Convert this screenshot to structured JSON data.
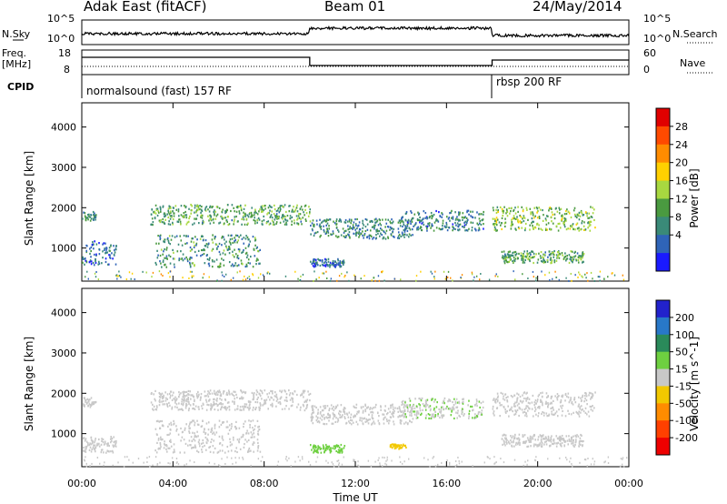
{
  "header": {
    "radar": "Adak East (fitACF)",
    "beam": "Beam 01",
    "date": "24/May/2014"
  },
  "sky_panel": {
    "left_label": "N.Sky",
    "right_label": "N.Search",
    "left_ticks": [
      "10^5",
      "10^0"
    ],
    "right_ticks": [
      "10^5",
      "10^0"
    ]
  },
  "freq_panel": {
    "left_label_line1": "Freq.",
    "left_label_line2": "[MHz]",
    "left_ticks": [
      "18",
      "8"
    ],
    "right_label": "Nave",
    "right_ticks": [
      "60",
      "0"
    ]
  },
  "cpid": {
    "label": "CPID",
    "segments": [
      {
        "text": "normalsound (fast) 157 RF",
        "start_hour": 0
      },
      {
        "text": "rbsp 200 RF",
        "start_hour": 18
      }
    ]
  },
  "power_colorbar": {
    "label": "Power [dB]",
    "ticks": [
      "28",
      "24",
      "20",
      "16",
      "12",
      "8",
      "4"
    ],
    "colors": [
      "#e00000",
      "#ff4a00",
      "#ff8c00",
      "#ffd000",
      "#a8d840",
      "#4a9a40",
      "#3a8a78",
      "#2f64b8",
      "#1a1aff"
    ]
  },
  "velocity_colorbar": {
    "label": "Velocity [m s^-1]",
    "ticks": [
      "200",
      "100",
      "50",
      "15",
      "-15",
      "-50",
      "-100",
      "-200"
    ],
    "colors": [
      "#2222cc",
      "#2878c8",
      "#2a8a5a",
      "#6ed040",
      "#c8c8c8",
      "#f2c800",
      "#ff8c00",
      "#ff4000",
      "#ee0000"
    ]
  },
  "chart_data": {
    "type": "heatmap",
    "xlabel": "Time UT",
    "x_ticks": [
      "00:00",
      "04:00",
      "08:00",
      "12:00",
      "16:00",
      "20:00",
      "00:00"
    ],
    "x_range_hours": [
      0,
      24
    ],
    "ylabel": "Slant Range [km]",
    "y_ticks": [
      1000,
      2000,
      3000,
      4000
    ],
    "y_range_km": [
      180,
      4600
    ],
    "panels": [
      {
        "name": "Power",
        "colorbar_range_db": [
          0,
          32
        ],
        "scatter_bands": [
          {
            "t_start": 0.0,
            "t_end": 0.6,
            "r_center": 1800,
            "r_half": 120,
            "value": 10
          },
          {
            "t_start": 0.0,
            "t_end": 1.5,
            "r_center": 900,
            "r_half": 300,
            "value": 6
          },
          {
            "t_start": 3.0,
            "t_end": 10.0,
            "r_center": 1850,
            "r_half": 250,
            "value": 12
          },
          {
            "t_start": 3.2,
            "t_end": 7.8,
            "r_center": 950,
            "r_half": 400,
            "value": 10
          },
          {
            "t_start": 10.0,
            "t_end": 14.5,
            "r_center": 1500,
            "r_half": 250,
            "value": 9
          },
          {
            "t_start": 10.0,
            "t_end": 11.5,
            "r_center": 650,
            "r_half": 100,
            "value": 6
          },
          {
            "t_start": 14.0,
            "t_end": 17.6,
            "r_center": 1700,
            "r_half": 250,
            "value": 8
          },
          {
            "t_start": 18.0,
            "t_end": 22.5,
            "r_center": 1750,
            "r_half": 300,
            "value": 14
          },
          {
            "t_start": 18.4,
            "t_end": 22.0,
            "r_center": 800,
            "r_half": 150,
            "value": 12
          }
        ]
      },
      {
        "name": "Velocity",
        "colorbar_range_ms": [
          -200,
          200
        ],
        "scatter_bands": [
          {
            "t_start": 0.0,
            "t_end": 0.6,
            "r_center": 1800,
            "r_half": 120,
            "value": 0
          },
          {
            "t_start": 0.0,
            "t_end": 1.5,
            "r_center": 750,
            "r_half": 200,
            "value": 0
          },
          {
            "t_start": 3.0,
            "t_end": 10.0,
            "r_center": 1850,
            "r_half": 250,
            "value": 0
          },
          {
            "t_start": 3.2,
            "t_end": 7.8,
            "r_center": 950,
            "r_half": 400,
            "value": 0
          },
          {
            "t_start": 10.0,
            "t_end": 14.5,
            "r_center": 1500,
            "r_half": 250,
            "value": 0
          },
          {
            "t_start": 10.0,
            "t_end": 11.5,
            "r_center": 650,
            "r_half": 100,
            "value": 30
          },
          {
            "t_start": 13.5,
            "t_end": 14.2,
            "r_center": 700,
            "r_half": 60,
            "value": -60
          },
          {
            "t_start": 14.0,
            "t_end": 17.6,
            "r_center": 1650,
            "r_half": 250,
            "value": 20
          },
          {
            "t_start": 18.0,
            "t_end": 22.5,
            "r_center": 1750,
            "r_half": 300,
            "value": 0
          },
          {
            "t_start": 18.4,
            "t_end": 22.0,
            "r_center": 850,
            "r_half": 150,
            "value": 0
          }
        ]
      }
    ]
  }
}
